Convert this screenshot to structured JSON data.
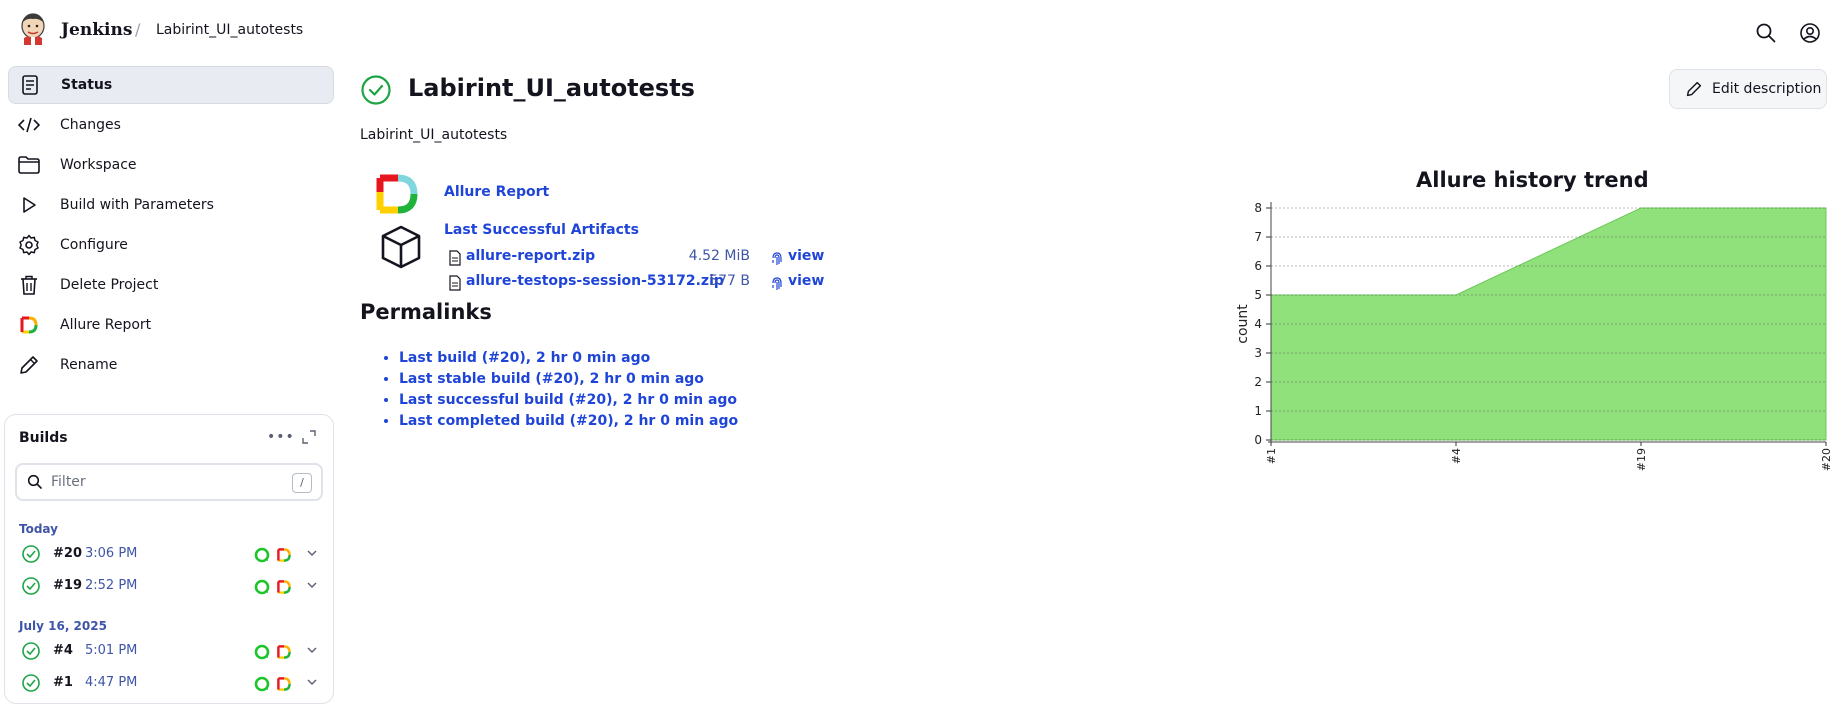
{
  "header": {
    "brand": "Jenkins",
    "separator": "/",
    "job": "Labirint_UI_autotests"
  },
  "sidebar": {
    "items": [
      {
        "label": "Status",
        "icon": "document-icon",
        "active": true
      },
      {
        "label": "Changes",
        "icon": "code-icon"
      },
      {
        "label": "Workspace",
        "icon": "folder-icon"
      },
      {
        "label": "Build with Parameters",
        "icon": "play-icon"
      },
      {
        "label": "Configure",
        "icon": "gear-icon"
      },
      {
        "label": "Delete Project",
        "icon": "trash-icon"
      },
      {
        "label": "Allure Report",
        "icon": "allure-icon"
      },
      {
        "label": "Rename",
        "icon": "pencil-icon"
      }
    ]
  },
  "builds": {
    "title": "Builds",
    "more": "•••",
    "filter_placeholder": "Filter",
    "filter_shortcut": "/",
    "groups": [
      {
        "label": "Today",
        "rows": [
          {
            "num": "#20",
            "time": "3:06 PM"
          },
          {
            "num": "#19",
            "time": "2:52 PM"
          }
        ]
      },
      {
        "label": "July 16, 2025",
        "rows": [
          {
            "num": "#4",
            "time": "5:01 PM"
          },
          {
            "num": "#1",
            "time": "4:47 PM"
          }
        ]
      }
    ]
  },
  "main": {
    "title": "Labirint_UI_autotests",
    "edit_description": "Edit description",
    "description": "Labirint_UI_autotests",
    "allure_report": "Allure Report",
    "last_successful_artifacts": "Last Successful Artifacts",
    "artifacts": [
      {
        "name": "allure-report.zip",
        "size": "4.52 MiB",
        "view": "view"
      },
      {
        "name": "allure-testops-session-53172.zip",
        "size": "577 B",
        "view": "view"
      }
    ],
    "permalinks_title": "Permalinks",
    "permalinks": [
      "Last build (#20), 2 hr 0 min ago",
      "Last stable build (#20), 2 hr 0 min ago",
      "Last successful build (#20), 2 hr 0 min ago",
      "Last completed build (#20), 2 hr 0 min ago"
    ]
  },
  "colors": {
    "accent_link": "#1f45d8",
    "success": "#1ea446",
    "chart_fill": "#90e07b",
    "chart_stroke": "#6cc95a"
  },
  "chart_data": {
    "type": "area",
    "title": "Allure history trend",
    "ylabel": "count",
    "xlabel": "",
    "categories": [
      "#1",
      "#4",
      "#19",
      "#20"
    ],
    "series": [
      {
        "values": [
          5,
          5,
          8,
          8
        ]
      }
    ],
    "ylim": [
      0,
      8
    ],
    "yticks": [
      "0",
      "1",
      "2",
      "3",
      "4",
      "5",
      "6",
      "7",
      "8"
    ],
    "grid": true,
    "legend": "none"
  }
}
